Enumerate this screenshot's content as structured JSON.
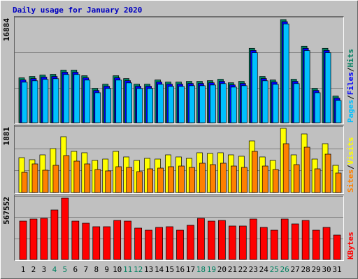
{
  "chart_data": [
    {
      "type": "bar",
      "title": "Daily usage for January 2020",
      "ylim": [
        0,
        16884
      ],
      "yticks": [
        16884
      ],
      "grid_divisions": 3,
      "label_separator": "/",
      "series": [
        {
          "name": "Hits",
          "color": "#008060",
          "values": [
            7204,
            7429,
            7654,
            7767,
            8442,
            8442,
            7542,
            5515,
            6191,
            7542,
            7091,
            6191,
            6191,
            6866,
            6528,
            6528,
            6641,
            6641,
            6754,
            6979,
            6416,
            6641,
            11931,
            7429,
            6866,
            16546,
            6979,
            12269,
            5515,
            11931,
            4277
          ]
        },
        {
          "name": "Files",
          "color": "#0000ff",
          "values": [
            6864,
            7089,
            7314,
            7427,
            8102,
            8102,
            7202,
            5175,
            5851,
            7202,
            6751,
            5851,
            5851,
            6526,
            6188,
            6188,
            6301,
            6301,
            6414,
            6639,
            6076,
            6301,
            11591,
            7089,
            6526,
            16206,
            6639,
            11929,
            5175,
            11591,
            3937
          ]
        },
        {
          "name": "Pages",
          "color": "#00c0ff",
          "values": [
            6504,
            6729,
            6954,
            7067,
            7742,
            7742,
            6842,
            4815,
            5491,
            6842,
            6391,
            5491,
            5491,
            6166,
            5828,
            5828,
            5941,
            5941,
            6054,
            6279,
            5716,
            5941,
            11231,
            6729,
            6166,
            15846,
            6279,
            11569,
            4815,
            11231,
            3577
          ]
        }
      ]
    },
    {
      "type": "bar",
      "ylim": [
        0,
        1881
      ],
      "yticks": [
        1881
      ],
      "grid_divisions": 3,
      "label_separator": "/",
      "series": [
        {
          "name": "Visits",
          "color": "#ffff00",
          "values": [
            990,
            931,
            1069,
            1247,
            1584,
            1168,
            1129,
            911,
            950,
            1168,
            1010,
            911,
            970,
            950,
            1069,
            1010,
            970,
            1129,
            1109,
            1129,
            1069,
            1030,
            1465,
            1010,
            911,
            1822,
            1069,
            1663,
            950,
            1386,
            772
          ]
        },
        {
          "name": "Sites",
          "color": "#ff8000",
          "values": [
            574,
            812,
            634,
            772,
            1049,
            891,
            812,
            653,
            614,
            733,
            713,
            594,
            673,
            693,
            733,
            752,
            713,
            832,
            792,
            832,
            752,
            713,
            1168,
            752,
            653,
            1386,
            792,
            1287,
            673,
            1089,
            554
          ]
        }
      ]
    },
    {
      "type": "bar",
      "ylim": [
        0,
        567552
      ],
      "yticks": [
        567552
      ],
      "grid_divisions": 3,
      "categories": [
        "1",
        "2",
        "3",
        "4",
        "5",
        "6",
        "7",
        "8",
        "9",
        "10",
        "11",
        "12",
        "13",
        "14",
        "15",
        "16",
        "17",
        "18",
        "19",
        "20",
        "21",
        "22",
        "23",
        "24",
        "25",
        "26",
        "27",
        "28",
        "29",
        "30",
        "31"
      ],
      "category_colors": [
        "#000000",
        "#000000",
        "#000000",
        "#008060",
        "#008060",
        "#000000",
        "#000000",
        "#000000",
        "#000000",
        "#000000",
        "#008060",
        "#008060",
        "#000000",
        "#000000",
        "#000000",
        "#000000",
        "#000000",
        "#008060",
        "#008060",
        "#000000",
        "#000000",
        "#000000",
        "#000000",
        "#000000",
        "#008060",
        "#008060",
        "#000000",
        "#000000",
        "#000000",
        "#000000",
        "#000000"
      ],
      "series": [
        {
          "name": "KBytes",
          "color": "#ff0000",
          "values": [
            343035,
            361746,
            367983,
            442827,
            548856,
            343035,
            324324,
            293139,
            293139,
            349272,
            343035,
            280665,
            261954,
            286902,
            293139,
            261954,
            305613,
            367983,
            343035,
            349272,
            299376,
            299376,
            361746,
            286902,
            261954,
            361746,
            318087,
            349272,
            261954,
            286902,
            218295
          ]
        }
      ]
    }
  ]
}
